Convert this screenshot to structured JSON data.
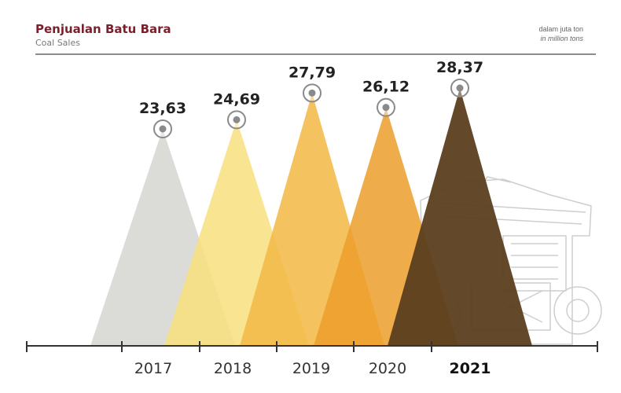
{
  "header": {
    "title": "Penjualan Batu Bara",
    "subtitle": "Coal Sales",
    "unit_id": "dalam juta ton",
    "unit_en": "in million tons"
  },
  "chart_data": {
    "type": "area",
    "title": "Penjualan Batu Bara",
    "subtitle": "Coal Sales",
    "unit": "dalam juta ton / in million tons",
    "categories": [
      "2017",
      "2018",
      "2019",
      "2020",
      "2021"
    ],
    "values": [
      23.63,
      24.69,
      27.79,
      26.12,
      28.37
    ],
    "value_labels": [
      "23,63",
      "24,69",
      "27,79",
      "26,12",
      "28,37"
    ],
    "highlight_category": "2021",
    "colors": [
      "#d9d9d6",
      "#f8e07e",
      "#f2b844",
      "#ec9d2c",
      "#5b3e1f"
    ],
    "opacities": [
      0.95,
      0.85,
      0.85,
      0.85,
      0.95
    ],
    "marker_color": "#8a8a8a",
    "grid": false,
    "legend": "none",
    "background_image": "mining-dump-truck"
  }
}
